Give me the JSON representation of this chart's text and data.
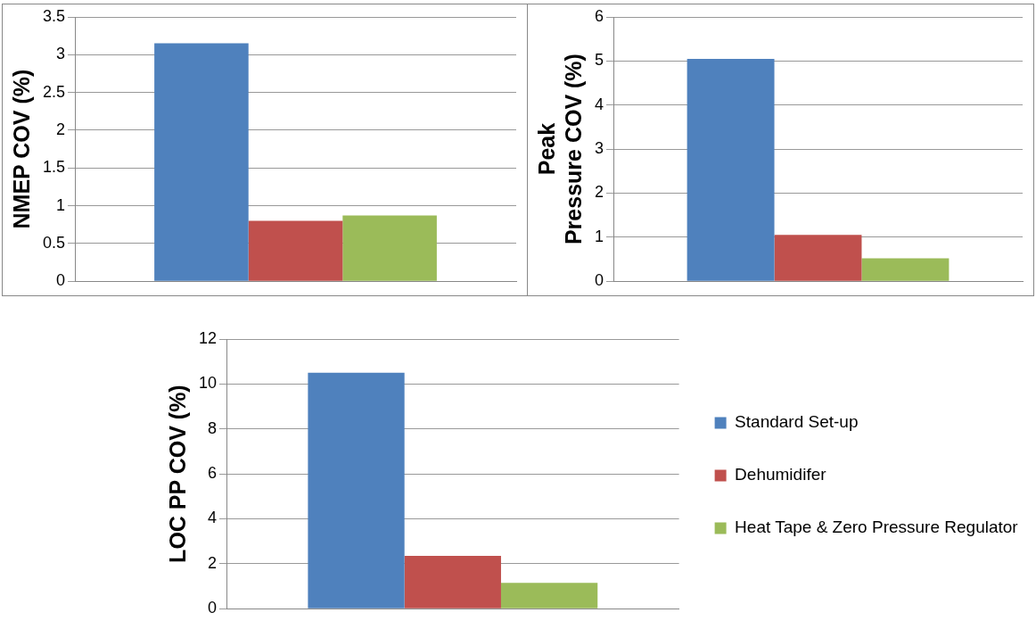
{
  "chart_data": [
    {
      "type": "bar",
      "categories": [
        null
      ],
      "ylabel": "NMEP COV (%)",
      "ylim": [
        0,
        3.5
      ],
      "yticks": [
        0,
        0.5,
        1,
        1.5,
        2,
        2.5,
        3,
        3.5
      ],
      "grid": "y",
      "legend": false,
      "series": [
        {
          "color": "#4f81bd",
          "values": [
            3.15
          ]
        },
        {
          "color": "#c0504d",
          "values": [
            0.8
          ]
        },
        {
          "color": "#9bbb59",
          "values": [
            0.87
          ]
        }
      ]
    },
    {
      "type": "bar",
      "categories": [
        null
      ],
      "ylabel": "Peak Pressure COV (%)",
      "ylim": [
        0,
        6
      ],
      "yticks": [
        0,
        1,
        2,
        3,
        4,
        5,
        6
      ],
      "grid": "y",
      "legend": false,
      "series": [
        {
          "color": "#4f81bd",
          "values": [
            5.05
          ]
        },
        {
          "color": "#c0504d",
          "values": [
            1.05
          ]
        },
        {
          "color": "#9bbb59",
          "values": [
            0.52
          ]
        }
      ]
    },
    {
      "type": "bar",
      "categories": [
        null
      ],
      "ylabel": "LOC PP COV (%)",
      "ylim": [
        0,
        12
      ],
      "yticks": [
        0,
        2,
        4,
        6,
        8,
        10,
        12
      ],
      "grid": "y",
      "legend": "right",
      "series": [
        {
          "name": "Standard Set-up",
          "color": "#4f81bd",
          "values": [
            10.5
          ]
        },
        {
          "name": "Dehumidifer",
          "color": "#c0504d",
          "values": [
            2.35
          ]
        },
        {
          "name": "Heat Tape & Zero Pressure Regulator",
          "color": "#9bbb59",
          "values": [
            1.15
          ]
        }
      ]
    }
  ]
}
